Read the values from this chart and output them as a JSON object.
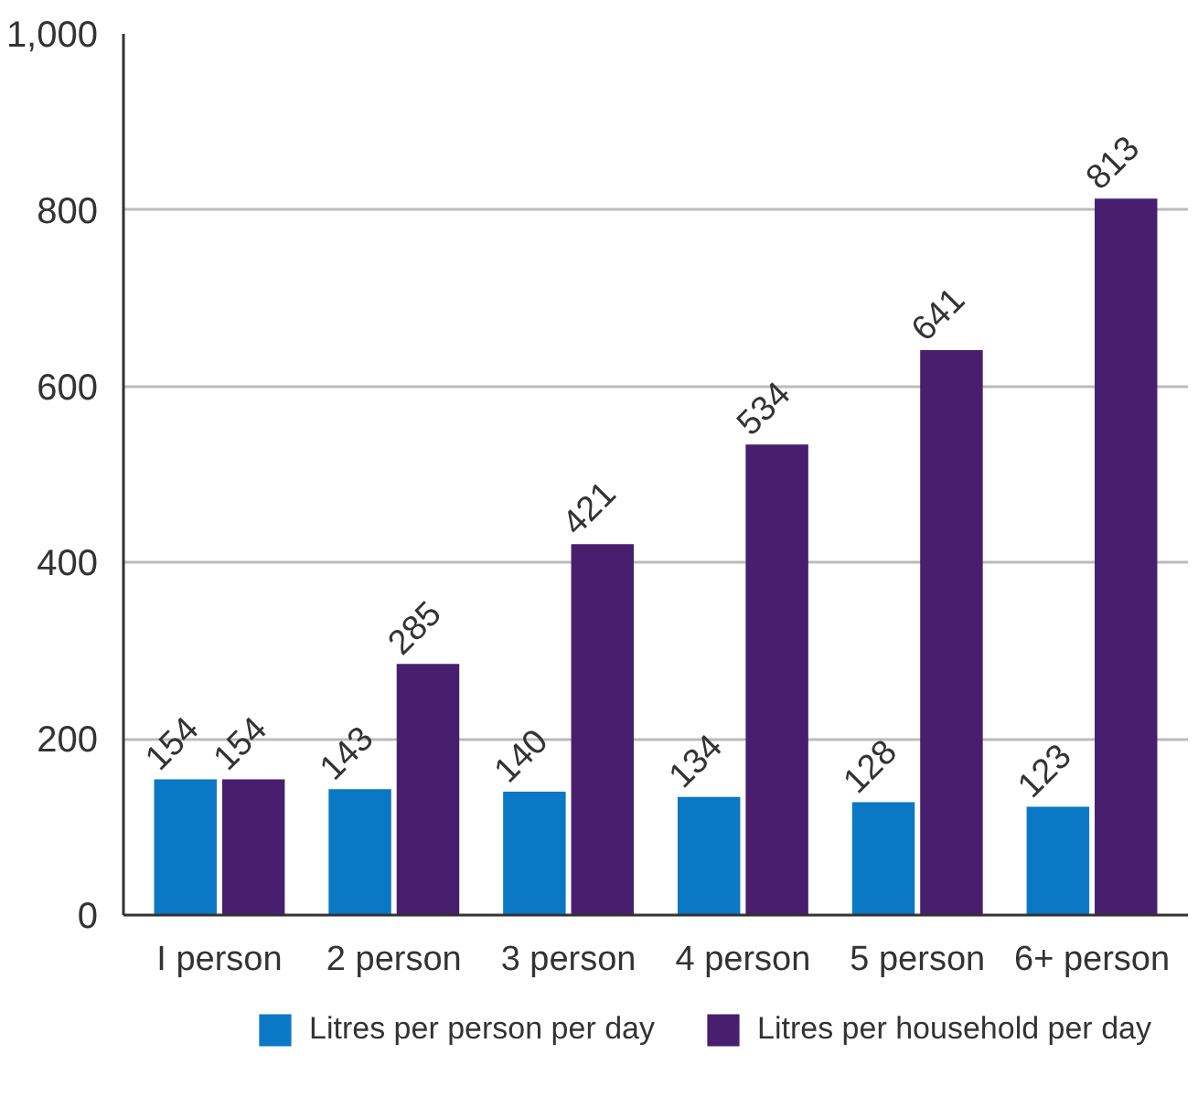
{
  "chart_data": {
    "type": "bar",
    "categories": [
      "I person",
      "2 person",
      "3 person",
      "4 person",
      "5 person",
      "6+ person"
    ],
    "series": [
      {
        "name": "Litres per person per day",
        "color": "#0a78c4",
        "values": [
          154,
          143,
          140,
          134,
          128,
          123
        ]
      },
      {
        "name": "Litres per household per day",
        "color": "#471f6e",
        "values": [
          154,
          285,
          421,
          534,
          641,
          813
        ]
      }
    ],
    "ylim": [
      0,
      1000
    ],
    "yticks": [
      0,
      200,
      400,
      600,
      800,
      {
        "value": 1000,
        "label": "1,000"
      }
    ],
    "grid": "y",
    "legend": "bottom",
    "data_labels": true
  }
}
